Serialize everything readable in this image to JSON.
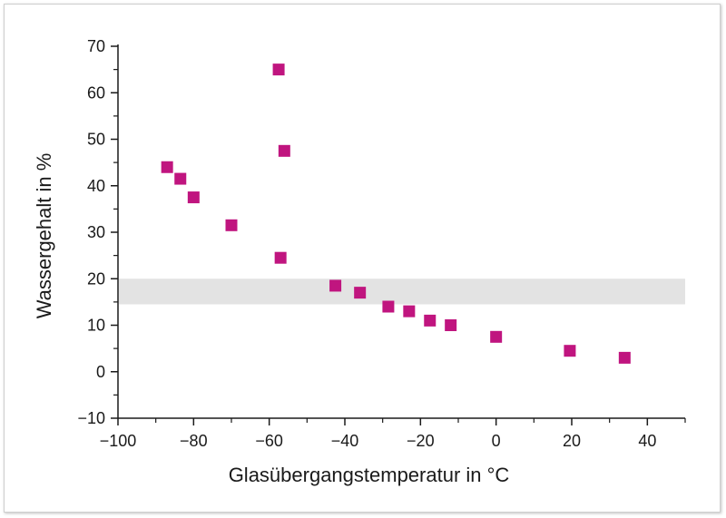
{
  "chart_data": {
    "type": "scatter",
    "xlabel": "Glasübergangstemperatur in °C",
    "ylabel": "Wassergehalt in %",
    "xlim": [
      -100,
      50
    ],
    "ylim": [
      -10,
      70
    ],
    "x_ticks": [
      -100,
      -80,
      -60,
      -40,
      -20,
      0,
      20,
      40
    ],
    "y_ticks": [
      -10,
      0,
      10,
      20,
      30,
      40,
      50,
      60,
      70
    ],
    "x_tick_labels": [
      "−100",
      "−80",
      "−60",
      "−40",
      "−20",
      "0",
      "20",
      "40"
    ],
    "y_tick_labels": [
      "−10",
      "0",
      "10",
      "20",
      "30",
      "40",
      "50",
      "60",
      "70"
    ],
    "grid": false,
    "shaded_band_y": [
      14.5,
      20
    ],
    "marker_color": "#c0157f",
    "band_color": "#e3e3e3",
    "series": [
      {
        "points": [
          [
            -87,
            44
          ],
          [
            -83.5,
            41.5
          ],
          [
            -80,
            37.5
          ],
          [
            -70,
            31.5
          ],
          [
            -57.5,
            65
          ],
          [
            -56,
            47.5
          ],
          [
            -57,
            24.5
          ],
          [
            -42.5,
            18.5
          ],
          [
            -36,
            17
          ],
          [
            -28.5,
            14
          ],
          [
            -23,
            13
          ],
          [
            -17.5,
            11
          ],
          [
            -12,
            10
          ],
          [
            0,
            7.5
          ],
          [
            19.5,
            4.5
          ],
          [
            34,
            3
          ]
        ]
      }
    ]
  }
}
